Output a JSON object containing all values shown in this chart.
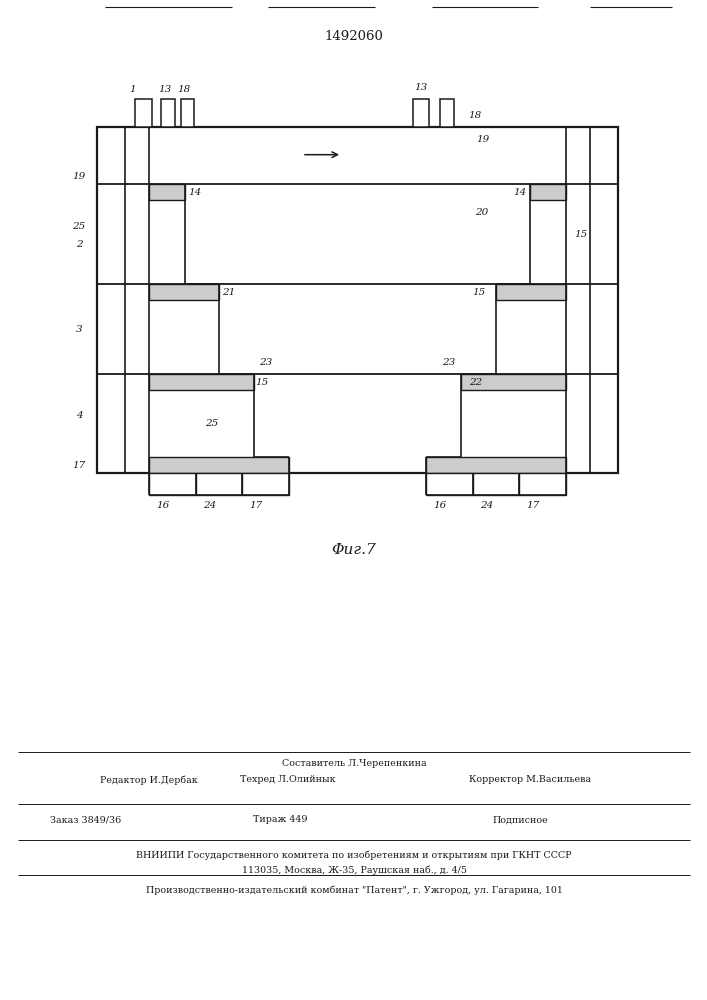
{
  "patent_number": "1492060",
  "fig_label": "Φиг.7",
  "bg_color": "#ffffff",
  "line_color": "#1a1a1a",
  "footer": {
    "col1_top": "Редактор И.Дербак",
    "col2_top1": "Составитель Л.Черепенкина",
    "col2_top2": "Техред Л.Олийнык",
    "col3_top": "Корректор М.Васильева",
    "row2_c1": "Заказ 3849/36",
    "row2_c2": "Тираж 449",
    "row2_c3": "Подписное",
    "row3": "ВНИИПИ Государственного комитета по изобретениям и открытиям при ГКНТ СССР",
    "row4": "113035, Москва, Ж-35, Раушская наб., д. 4/5",
    "row5": "Производственно-издательский комбинат \"Патент\", г. Ужгород, ул. Гагарина, 101"
  }
}
